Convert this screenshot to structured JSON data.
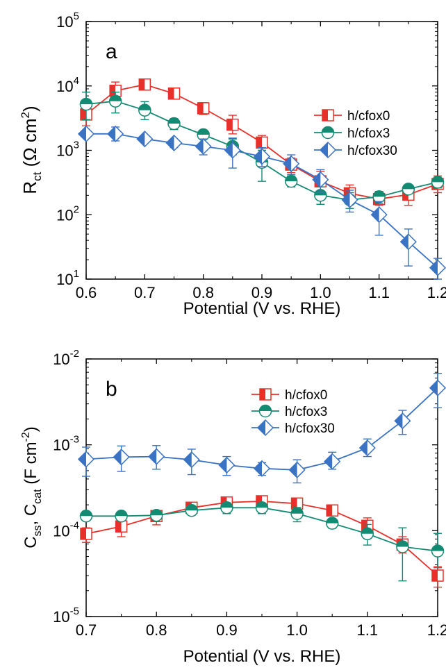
{
  "chart_data": [
    {
      "type": "line",
      "panel_label": "a",
      "y_scale": "log",
      "xlim": [
        0.6,
        1.2
      ],
      "ylim": [
        10,
        100000
      ],
      "x_ticks": [
        "0.6",
        "0.7",
        "0.8",
        "0.9",
        "1.0",
        "1.1",
        "1.2"
      ],
      "y_ticks": [
        {
          "base": "10",
          "exp": "1",
          "value": 10
        },
        {
          "base": "10",
          "exp": "2",
          "value": 100
        },
        {
          "base": "10",
          "exp": "3",
          "value": 1000
        },
        {
          "base": "10",
          "exp": "4",
          "value": 10000
        },
        {
          "base": "10",
          "exp": "5",
          "value": 100000
        }
      ],
      "xlabel": "Potential (V vs. RHE)",
      "ylabel": {
        "main": "R",
        "sub": "ct",
        "unit_open": " (Ω cm",
        "unit_sup": "2",
        "unit_close": ")"
      },
      "legend_position": "upper-right",
      "marker_style": "half-filled",
      "series": [
        {
          "name": "h/cfox0",
          "color": "#e8302a",
          "marker": "square",
          "x": [
            0.6,
            0.65,
            0.7,
            0.75,
            0.8,
            0.85,
            0.9,
            0.95,
            1.0,
            1.05,
            1.1,
            1.15,
            1.2
          ],
          "y": [
            3600,
            8400,
            10500,
            7600,
            4500,
            2500,
            1320,
            600,
            330,
            215,
            175,
            205,
            300
          ],
          "err_lo": [
            2400,
            5800,
            8600,
            6400,
            3600,
            1800,
            1000,
            450,
            230,
            150,
            140,
            140,
            220
          ],
          "err_hi": [
            5000,
            11500,
            12500,
            8800,
            5500,
            3500,
            1700,
            760,
            470,
            290,
            220,
            290,
            400
          ]
        },
        {
          "name": "h/cfox3",
          "color": "#138a72",
          "marker": "circle",
          "x": [
            0.6,
            0.65,
            0.7,
            0.75,
            0.8,
            0.85,
            0.9,
            0.95,
            1.0,
            1.05,
            1.1,
            1.15,
            1.2
          ],
          "y": [
            5200,
            5800,
            4200,
            2600,
            1750,
            1150,
            650,
            330,
            200,
            170,
            190,
            250,
            320
          ],
          "err_lo": [
            3000,
            3800,
            3000,
            2100,
            1500,
            850,
            330,
            270,
            145,
            125,
            150,
            220,
            260
          ],
          "err_hi": [
            8000,
            8000,
            5700,
            3100,
            2000,
            1500,
            1000,
            400,
            270,
            220,
            230,
            280,
            380
          ]
        },
        {
          "name": "h/cfox30",
          "color": "#3a72c4",
          "marker": "diamond",
          "x": [
            0.6,
            0.65,
            0.7,
            0.75,
            0.8,
            0.85,
            0.9,
            0.95,
            1.0,
            1.05,
            1.1,
            1.15,
            1.2
          ],
          "y": [
            1800,
            1800,
            1500,
            1300,
            1150,
            1000,
            800,
            620,
            350,
            170,
            100,
            38,
            15
          ],
          "err_lo": [
            1600,
            1400,
            1300,
            1100,
            850,
            530,
            560,
            420,
            220,
            110,
            48,
            16,
            10
          ],
          "err_hi": [
            2000,
            2300,
            1700,
            1500,
            1500,
            1550,
            1100,
            850,
            500,
            240,
            160,
            60,
            21
          ]
        }
      ]
    },
    {
      "type": "line",
      "panel_label": "b",
      "y_scale": "log",
      "xlim": [
        0.7,
        1.2
      ],
      "ylim": [
        1e-05,
        0.01
      ],
      "x_ticks": [
        "0.7",
        "0.8",
        "0.9",
        "1.0",
        "1.1",
        "1.2"
      ],
      "y_ticks": [
        {
          "base": "10",
          "exp": "-5",
          "value": 1e-05
        },
        {
          "base": "10",
          "exp": "-4",
          "value": 0.0001
        },
        {
          "base": "10",
          "exp": "-3",
          "value": 0.001
        },
        {
          "base": "10",
          "exp": "-2",
          "value": 0.01
        }
      ],
      "xlabel": "Potential (V vs. RHE)",
      "ylabel": {
        "a": "C",
        "a_sub": "ss",
        "sep": ", ",
        "b": "C",
        "b_sub": "cat",
        "unit_open": " (F cm",
        "unit_sup": "-2",
        "unit_close": ")"
      },
      "legend_position": "upper-center",
      "marker_style": "half-filled",
      "series": [
        {
          "name": "h/cfox0",
          "color": "#e8302a",
          "marker": "square",
          "x": [
            0.7,
            0.75,
            0.8,
            0.85,
            0.9,
            0.95,
            1.0,
            1.05,
            1.1,
            1.15,
            1.2
          ],
          "y": [
            9.2e-05,
            0.000112,
            0.000148,
            0.000185,
            0.000213,
            0.00022,
            0.000207,
            0.000172,
            0.000114,
            6.9e-05,
            3e-05
          ],
          "err_lo": [
            7.3e-05,
            8.5e-05,
            0.000117,
            0.000158,
            0.000188,
            0.000195,
            0.000182,
            0.000151,
            9.3e-05,
            5.5e-05,
            2.2e-05
          ],
          "err_hi": [
            0.000108,
            0.000148,
            0.000168,
            0.000208,
            0.000236,
            0.000243,
            0.000236,
            0.000197,
            0.000141,
            8.5e-05,
            3.8e-05
          ]
        },
        {
          "name": "h/cfox3",
          "color": "#138a72",
          "marker": "circle",
          "x": [
            0.7,
            0.75,
            0.8,
            0.85,
            0.9,
            0.95,
            1.0,
            1.05,
            1.1,
            1.15,
            1.2
          ],
          "y": [
            0.000148,
            0.000148,
            0.000151,
            0.000172,
            0.000185,
            0.000185,
            0.000158,
            0.000122,
            9.2e-05,
            6.5e-05,
            5.8e-05
          ],
          "err_lo": [
            0.000138,
            0.000138,
            0.00014,
            0.000152,
            0.000158,
            0.000158,
            0.000127,
            0.000107,
            6.8e-05,
            2.6e-05,
            3.7e-05
          ],
          "err_hi": [
            0.000158,
            0.000158,
            0.000162,
            0.000192,
            0.000211,
            0.000209,
            0.000186,
            0.000138,
            0.000118,
            0.000108,
            9.3e-05
          ]
        },
        {
          "name": "h/cfox30",
          "color": "#3a72c4",
          "marker": "diamond",
          "x": [
            0.7,
            0.75,
            0.8,
            0.85,
            0.9,
            0.95,
            1.0,
            1.05,
            1.1,
            1.15,
            1.2
          ],
          "y": [
            0.00068,
            0.00072,
            0.00073,
            0.00067,
            0.00058,
            0.00053,
            0.00051,
            0.00064,
            0.00092,
            0.0019,
            0.0046
          ],
          "err_lo": [
            0.00043,
            0.00049,
            0.00052,
            0.00045,
            0.00044,
            0.00044,
            0.00036,
            0.00052,
            0.00073,
            0.00132,
            0.0027
          ],
          "err_hi": [
            0.00094,
            0.00097,
            0.00098,
            0.00089,
            0.00073,
            0.00062,
            0.00067,
            0.00082,
            0.00117,
            0.00252,
            0.0068
          ]
        }
      ]
    }
  ]
}
